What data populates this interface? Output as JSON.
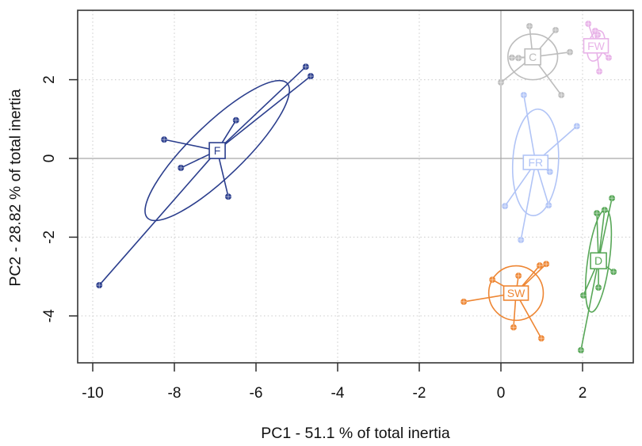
{
  "chart_data": {
    "type": "scatter",
    "title": "",
    "xlabel": "PC1 - 51.1 % of total inertia",
    "ylabel": "PC2 - 28.82 % of total inertia",
    "x_ticks": [
      -10,
      -8,
      -6,
      -4,
      -2,
      0,
      2
    ],
    "y_ticks": [
      -4,
      -2,
      0,
      2
    ],
    "xlim": [
      -10.37,
      3.24
    ],
    "ylim": [
      -5.19,
      3.76
    ],
    "grid": {
      "dotted_gridlines_at_ticks": true,
      "solid_origin_lines_at_zero": true
    },
    "legend_position": "none",
    "plot_style": "ade4 s.class PCA factor map: group centroid labels, spider segments to points, inertia ellipses",
    "groups": [
      {
        "label": "F",
        "color": "#2B3E8D",
        "centroid": {
          "x": -6.95,
          "y": 0.2
        },
        "points": [
          {
            "x": -4.78,
            "y": 2.33
          },
          {
            "x": -4.66,
            "y": 2.09
          },
          {
            "x": -6.49,
            "y": 0.97
          },
          {
            "x": -8.25,
            "y": 0.48
          },
          {
            "x": -7.84,
            "y": -0.24
          },
          {
            "x": -6.68,
            "y": -0.97
          },
          {
            "x": -9.84,
            "y": -3.22
          }
        ],
        "ellipse": {
          "rx": 2.42,
          "ry": 0.66,
          "angle_deg": -44
        }
      },
      {
        "label": "C",
        "color": "#BDBDBD",
        "centroid": {
          "x": 0.78,
          "y": 2.58
        },
        "points": [
          {
            "x": 0.7,
            "y": 3.36
          },
          {
            "x": 1.34,
            "y": 3.26
          },
          {
            "x": 1.69,
            "y": 2.7
          },
          {
            "x": 0.27,
            "y": 2.56
          },
          {
            "x": 0.43,
            "y": 2.55
          },
          {
            "x": 0.0,
            "y": 1.93
          },
          {
            "x": 1.48,
            "y": 1.61
          }
        ],
        "ellipse": {
          "rx": 0.62,
          "ry": 0.57,
          "angle_deg": 0
        }
      },
      {
        "label": "FW",
        "color": "#E8B3E8",
        "centroid": {
          "x": 2.33,
          "y": 2.86
        },
        "points": [
          {
            "x": 2.14,
            "y": 3.42
          },
          {
            "x": 2.31,
            "y": 3.24
          },
          {
            "x": 2.37,
            "y": 3.14
          },
          {
            "x": 2.64,
            "y": 2.56
          },
          {
            "x": 2.41,
            "y": 2.21
          }
        ],
        "ellipse": {
          "rx": 0.2,
          "ry": 0.39,
          "angle_deg": 15
        }
      },
      {
        "label": "FR",
        "color": "#B1C4F6",
        "centroid": {
          "x": 0.85,
          "y": -0.1
        },
        "points": [
          {
            "x": 0.56,
            "y": 1.61
          },
          {
            "x": 1.86,
            "y": 0.82
          },
          {
            "x": 1.2,
            "y": -0.34
          },
          {
            "x": 0.1,
            "y": -1.21
          },
          {
            "x": 1.17,
            "y": -1.19
          },
          {
            "x": 0.49,
            "y": -2.07
          }
        ],
        "ellipse": {
          "rx": 0.57,
          "ry": 1.33,
          "angle_deg": 3
        }
      },
      {
        "label": "SW",
        "color": "#EE8633",
        "centroid": {
          "x": 0.37,
          "y": -3.42
        },
        "points": [
          {
            "x": 0.95,
            "y": -2.72
          },
          {
            "x": 1.11,
            "y": -2.68
          },
          {
            "x": 0.43,
            "y": -2.98
          },
          {
            "x": -0.21,
            "y": -3.08
          },
          {
            "x": -0.91,
            "y": -3.64
          },
          {
            "x": 0.31,
            "y": -4.29
          },
          {
            "x": 0.99,
            "y": -4.57
          }
        ],
        "ellipse": {
          "rx": 0.68,
          "ry": 0.68,
          "angle_deg": 0
        }
      },
      {
        "label": "D",
        "color": "#58A758",
        "centroid": {
          "x": 2.39,
          "y": -2.6
        },
        "points": [
          {
            "x": 2.72,
            "y": -1.01
          },
          {
            "x": 2.54,
            "y": -1.31
          },
          {
            "x": 2.35,
            "y": -1.39
          },
          {
            "x": 2.76,
            "y": -2.88
          },
          {
            "x": 2.39,
            "y": -3.28
          },
          {
            "x": 2.02,
            "y": -3.48
          },
          {
            "x": 1.96,
            "y": -4.87
          }
        ],
        "ellipse": {
          "rx": 0.27,
          "ry": 1.29,
          "angle_deg": 8
        }
      }
    ]
  },
  "style": {
    "background": "#ffffff",
    "plot_border_color": "#3f3f3f",
    "dotted_grid_color": "#d2d2d2",
    "origin_line_color": "#a8a8a8",
    "tick_color": "#2e2e2e",
    "text_color": "#111111"
  }
}
